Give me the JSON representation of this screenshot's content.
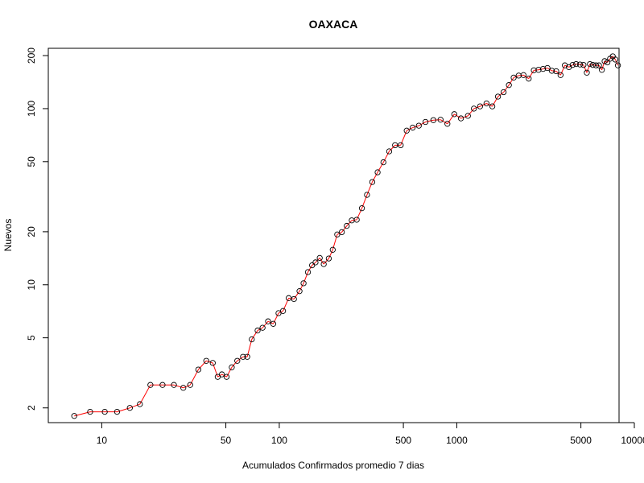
{
  "chart_data": {
    "type": "scatter",
    "title": "OAXACA",
    "xlabel": "Acumulados Confirmados promedio  7  dias",
    "ylabel": "Nuevos",
    "xscale": "log",
    "yscale": "log",
    "xlim": [
      5,
      8200
    ],
    "ylim": [
      1.65,
      220
    ],
    "xticks": [
      10,
      50,
      100,
      500,
      1000,
      5000,
      10000
    ],
    "xtick_labels": [
      "10",
      "50",
      "100",
      "500",
      "1000",
      "5000",
      "10000"
    ],
    "yticks": [
      2,
      5,
      10,
      20,
      50,
      100,
      200
    ],
    "ytick_labels": [
      "2",
      "5",
      "10",
      "20",
      "50",
      "100",
      "200"
    ],
    "grid": false,
    "line_color": "#ff0000",
    "marker_color": "#000000",
    "series": [
      {
        "x": [
          7.0,
          8.6,
          10.4,
          12.2,
          14.4,
          16.4,
          18.8,
          22,
          25.5,
          28.8,
          31.5,
          35,
          38.8,
          42.2,
          45,
          47.5,
          50.5,
          54,
          58,
          62.5,
          66,
          70,
          75.5,
          80.5,
          86.5,
          92.5,
          99,
          105,
          113,
          121,
          130,
          137,
          145,
          153,
          160,
          169,
          178,
          190,
          200,
          212,
          225,
          240,
          256,
          273,
          292,
          312,
          334,
          358,
          386,
          416,
          449,
          483,
          522,
          564,
          611,
          666,
          738,
          810,
          885,
          968,
          1055,
          1155,
          1248,
          1352,
          1470,
          1585,
          1705,
          1835,
          1965,
          2090,
          2230,
          2375,
          2540,
          2715,
          2885,
          3060,
          3240,
          3430,
          3630,
          3840,
          4060,
          4280,
          4490,
          4700,
          4940,
          5170,
          5400,
          5620,
          5840,
          6080,
          6320,
          6560,
          6800,
          7050,
          7300,
          7560,
          7820,
          8080
        ],
        "y": [
          1.8,
          1.9,
          1.9,
          1.9,
          2.0,
          2.1,
          2.7,
          2.7,
          2.7,
          2.6,
          2.7,
          3.3,
          3.7,
          3.6,
          3.0,
          3.1,
          3.0,
          3.4,
          3.7,
          3.9,
          3.9,
          4.9,
          5.5,
          5.7,
          6.2,
          6.0,
          6.9,
          7.1,
          8.4,
          8.3,
          9.2,
          10.2,
          11.8,
          12.9,
          13.4,
          14.2,
          13.1,
          14.1,
          15.8,
          19.3,
          19.9,
          21.6,
          23.2,
          23.4,
          27.2,
          32.4,
          38.3,
          43.5,
          49.6,
          57.2,
          62.0,
          62.0,
          75.0,
          78.0,
          80.0,
          84.0,
          86.0,
          86.5,
          82.0,
          93.0,
          88.0,
          91.0,
          100.0,
          103.0,
          107.0,
          103.0,
          117.0,
          124.0,
          136.0,
          150.0,
          154.0,
          155.0,
          148.0,
          165.0,
          166.0,
          168.0,
          170.0,
          164.0,
          163.0,
          155.0,
          176.0,
          172.0,
          177.0,
          179.0,
          178.0,
          177.0,
          160.0,
          179.0,
          177.0,
          176.0,
          176.0,
          166.0,
          186.0,
          183.0,
          192.0,
          198.0,
          190.0,
          176.0
        ]
      }
    ]
  }
}
